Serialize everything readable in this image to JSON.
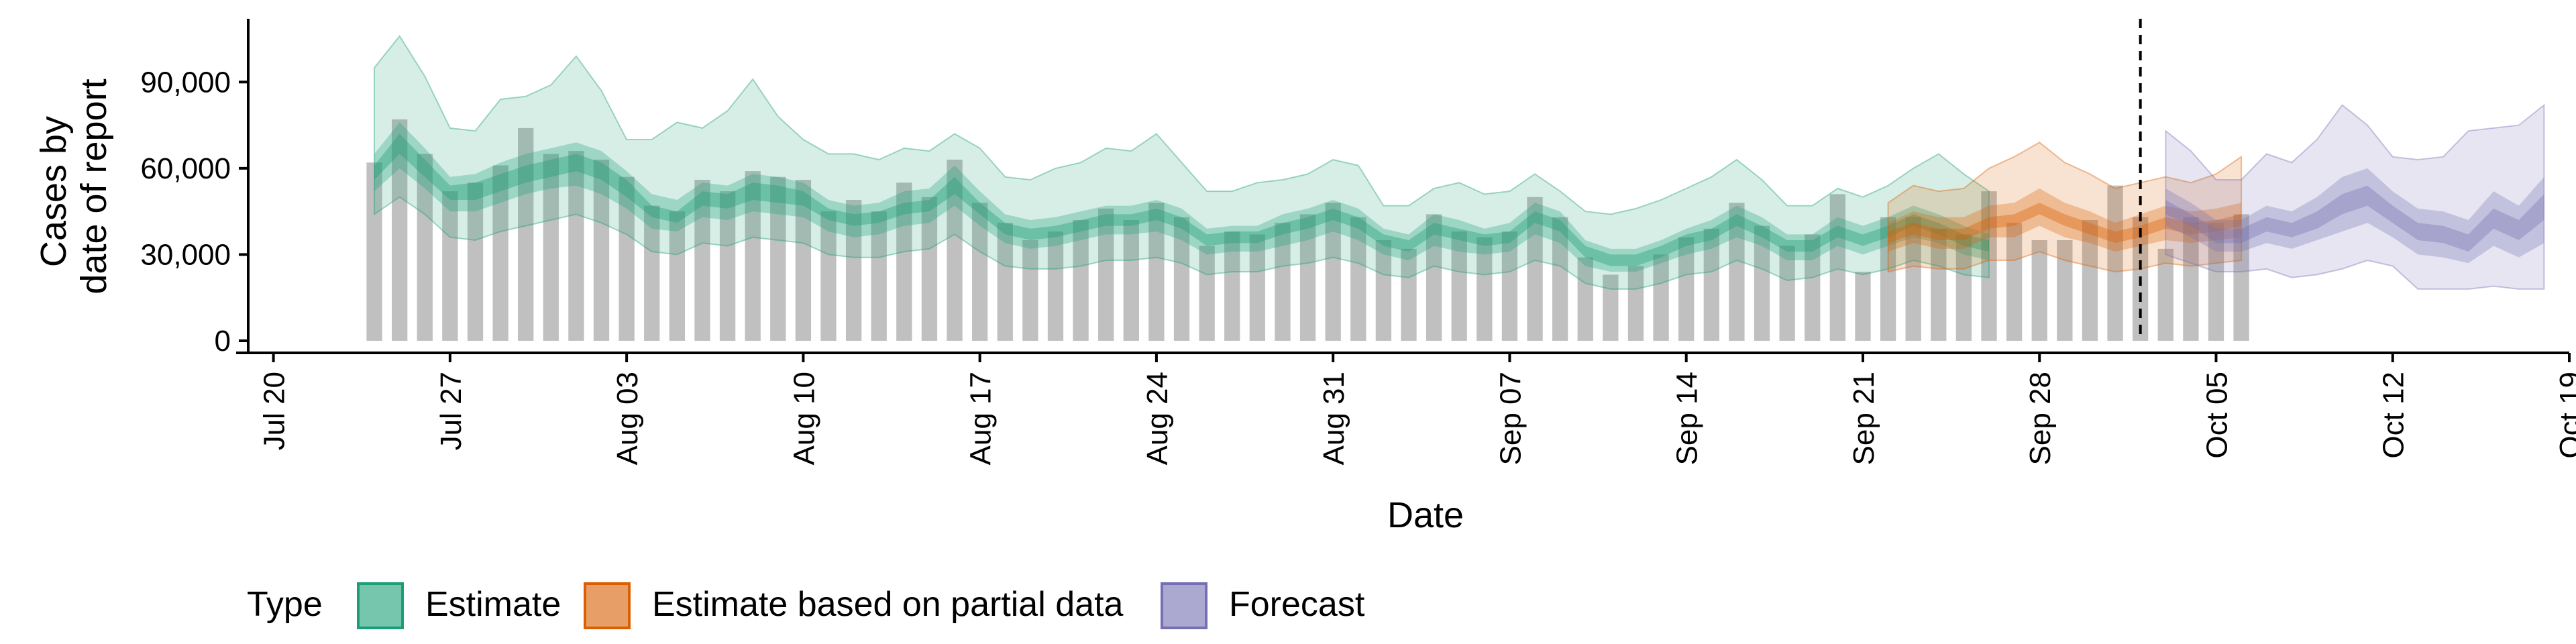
{
  "chart_data": {
    "type": "bar+ribbon",
    "xlabel": "Date",
    "ylabel_lines": [
      "Cases by",
      "date of report"
    ],
    "ylim": [
      0,
      112000
    ],
    "xlim": [
      "2020-07-19",
      "2020-10-19"
    ],
    "y_ticks": [
      {
        "value": 0,
        "label": "0"
      },
      {
        "value": 30000,
        "label": "30,000"
      },
      {
        "value": 60000,
        "label": "60,000"
      },
      {
        "value": 90000,
        "label": "90,000"
      }
    ],
    "x_ticks": [
      {
        "date": "2020-07-20",
        "label": "Jul 20"
      },
      {
        "date": "2020-07-27",
        "label": "Jul 27"
      },
      {
        "date": "2020-08-03",
        "label": "Aug 03"
      },
      {
        "date": "2020-08-10",
        "label": "Aug 10"
      },
      {
        "date": "2020-08-17",
        "label": "Aug 17"
      },
      {
        "date": "2020-08-24",
        "label": "Aug 24"
      },
      {
        "date": "2020-08-31",
        "label": "Aug 31"
      },
      {
        "date": "2020-09-07",
        "label": "Sep 07"
      },
      {
        "date": "2020-09-14",
        "label": "Sep 14"
      },
      {
        "date": "2020-09-21",
        "label": "Sep 21"
      },
      {
        "date": "2020-09-28",
        "label": "Sep 28"
      },
      {
        "date": "2020-10-05",
        "label": "Oct 05"
      },
      {
        "date": "2020-10-12",
        "label": "Oct 12"
      },
      {
        "date": "2020-10-19",
        "label": "Oct 19"
      }
    ],
    "bars": {
      "start_date": "2020-07-24",
      "values": [
        62000,
        77000,
        65000,
        52000,
        55000,
        61000,
        74000,
        65000,
        66000,
        63000,
        57000,
        47000,
        45000,
        56000,
        52000,
        59000,
        57000,
        56000,
        45000,
        49000,
        45000,
        55000,
        50000,
        63000,
        48000,
        41000,
        35000,
        38000,
        42000,
        46000,
        42000,
        48000,
        43000,
        33000,
        38000,
        37000,
        41000,
        44000,
        48000,
        43000,
        35000,
        32000,
        44000,
        38000,
        36000,
        38000,
        50000,
        43000,
        29000,
        23000,
        26000,
        30000,
        36000,
        39000,
        48000,
        40000,
        33000,
        37000,
        51000,
        24000,
        43000,
        43000,
        39000,
        37000,
        52000,
        41000,
        35000,
        35000,
        42000,
        54000,
        43000,
        32000,
        43000,
        41000,
        44000
      ]
    },
    "vline_date": "2020-10-02",
    "series": [
      {
        "name": "Estimate",
        "color": "#1b9e77",
        "start_date": "2020-07-24",
        "median": [
          58000,
          68000,
          60000,
          51000,
          52000,
          55000,
          58000,
          60000,
          62000,
          59000,
          53000,
          45000,
          43000,
          49000,
          48000,
          52000,
          51000,
          49000,
          44000,
          42000,
          43000,
          46000,
          47000,
          54000,
          46000,
          39000,
          37000,
          38000,
          40000,
          42000,
          42000,
          44000,
          41000,
          35000,
          36000,
          36000,
          39000,
          41000,
          44000,
          41000,
          35000,
          33000,
          39000,
          37000,
          35000,
          36000,
          43000,
          40000,
          31000,
          28000,
          28000,
          31000,
          35000,
          37000,
          42000,
          38000,
          33000,
          33000,
          38000,
          35000,
          38000,
          42000,
          39000,
          35000,
          33000
        ],
        "lower90": [
          44000,
          50000,
          44000,
          36000,
          35000,
          38000,
          40000,
          42000,
          44000,
          41000,
          37000,
          31000,
          30000,
          34000,
          33000,
          36000,
          35000,
          34000,
          30000,
          29000,
          29000,
          31000,
          32000,
          37000,
          31000,
          26000,
          25000,
          25000,
          26000,
          28000,
          28000,
          29000,
          27000,
          23000,
          24000,
          24000,
          26000,
          27000,
          29000,
          27000,
          23000,
          22000,
          26000,
          24000,
          23000,
          24000,
          28000,
          26000,
          20000,
          18000,
          18000,
          20000,
          23000,
          24000,
          28000,
          25000,
          21000,
          22000,
          25000,
          23000,
          25000,
          28000,
          26000,
          23000,
          22000
        ],
        "upper90": [
          95000,
          106000,
          92000,
          74000,
          73000,
          84000,
          85000,
          89000,
          99000,
          87000,
          70000,
          70000,
          76000,
          74000,
          80000,
          91000,
          78000,
          70000,
          65000,
          65000,
          63000,
          67000,
          66000,
          72000,
          67000,
          57000,
          56000,
          60000,
          62000,
          67000,
          66000,
          72000,
          62000,
          52000,
          52000,
          55000,
          56000,
          58000,
          63000,
          61000,
          47000,
          47000,
          53000,
          55000,
          51000,
          52000,
          58000,
          52000,
          45000,
          44000,
          46000,
          49000,
          53000,
          57000,
          63000,
          56000,
          47000,
          47000,
          53000,
          50000,
          54000,
          60000,
          65000,
          58000,
          52000
        ],
        "lower50": [
          52000,
          60000,
          53000,
          45000,
          45000,
          48000,
          51000,
          53000,
          54000,
          51000,
          46000,
          39000,
          38000,
          43000,
          42000,
          45000,
          44000,
          43000,
          38000,
          36000,
          37000,
          40000,
          41000,
          47000,
          40000,
          34000,
          32000,
          33000,
          35000,
          37000,
          37000,
          38000,
          35000,
          30000,
          31000,
          31000,
          33000,
          35000,
          38000,
          35000,
          30000,
          28000,
          33000,
          31000,
          30000,
          31000,
          37000,
          34000,
          26000,
          24000,
          24000,
          27000,
          30000,
          32000,
          36000,
          33000,
          28000,
          28000,
          33000,
          30000,
          33000,
          36000,
          34000,
          30000,
          28000
        ],
        "upper50": [
          65000,
          76000,
          67000,
          57000,
          58000,
          62000,
          65000,
          67000,
          69000,
          66000,
          59000,
          51000,
          49000,
          55000,
          54000,
          58000,
          57000,
          55000,
          49000,
          47000,
          48000,
          52000,
          53000,
          61000,
          52000,
          44000,
          42000,
          43000,
          45000,
          47000,
          47000,
          49000,
          46000,
          39000,
          40000,
          40000,
          44000,
          46000,
          49000,
          46000,
          39000,
          37000,
          44000,
          42000,
          39000,
          41000,
          48000,
          45000,
          35000,
          32000,
          32000,
          35000,
          39000,
          42000,
          47000,
          43000,
          37000,
          37000,
          43000,
          40000,
          43000,
          47000,
          44000,
          40000,
          37000
        ],
        "lower20": [
          56000,
          65000,
          57000,
          49000,
          49000,
          52000,
          55000,
          57000,
          59000,
          56000,
          50000,
          43000,
          41000,
          47000,
          46000,
          49000,
          48000,
          47000,
          42000,
          40000,
          41000,
          44000,
          45000,
          51000,
          44000,
          37000,
          35000,
          36000,
          38000,
          40000,
          40000,
          42000,
          39000,
          33000,
          34000,
          34000,
          37000,
          39000,
          42000,
          39000,
          33000,
          31000,
          37000,
          35000,
          33000,
          34000,
          41000,
          38000,
          29000,
          26000,
          26000,
          29000,
          33000,
          35000,
          40000,
          36000,
          31000,
          31000,
          36000,
          33000,
          36000,
          40000,
          37000,
          33000,
          31000
        ],
        "upper20": [
          61000,
          72000,
          63000,
          54000,
          55000,
          58000,
          61000,
          63000,
          65000,
          62000,
          56000,
          47000,
          45000,
          52000,
          51000,
          55000,
          54000,
          52000,
          46000,
          44000,
          45000,
          48000,
          49000,
          57000,
          48000,
          41000,
          39000,
          40000,
          42000,
          44000,
          44000,
          46000,
          43000,
          37000,
          38000,
          38000,
          41000,
          43000,
          46000,
          43000,
          37000,
          35000,
          41000,
          39000,
          37000,
          38000,
          45000,
          42000,
          33000,
          30000,
          30000,
          33000,
          37000,
          39000,
          44000,
          40000,
          35000,
          35000,
          40000,
          37000,
          40000,
          44000,
          41000,
          37000,
          35000
        ]
      },
      {
        "name": "Estimate based on partial data",
        "color": "#d95f02",
        "start_date": "2020-09-22",
        "median": [
          36000,
          39000,
          37000,
          37000,
          41000,
          42000,
          46000,
          42000,
          39000,
          36000,
          38000,
          41000,
          39000,
          40000,
          42000
        ],
        "lower90": [
          24000,
          26000,
          25000,
          25000,
          28000,
          28000,
          31000,
          28000,
          26000,
          24000,
          25000,
          27000,
          26000,
          27000,
          28000
        ],
        "upper90": [
          48000,
          54000,
          52000,
          53000,
          60000,
          64000,
          69000,
          62000,
          58000,
          53000,
          55000,
          57000,
          55000,
          58000,
          64000
        ],
        "lower50": [
          31000,
          34000,
          32000,
          32000,
          36000,
          36000,
          40000,
          36000,
          34000,
          31000,
          33000,
          35000,
          34000,
          35000,
          36000
        ],
        "upper50": [
          41000,
          45000,
          43000,
          43000,
          47000,
          48000,
          53000,
          48000,
          45000,
          41000,
          44000,
          47000,
          45000,
          46000,
          48000
        ],
        "lower20": [
          34000,
          37000,
          35000,
          35000,
          39000,
          40000,
          44000,
          40000,
          37000,
          34000,
          36000,
          39000,
          37000,
          38000,
          40000
        ],
        "upper20": [
          38000,
          41000,
          39000,
          39000,
          43000,
          44000,
          48000,
          44000,
          41000,
          38000,
          40000,
          43000,
          41000,
          42000,
          44000
        ]
      },
      {
        "name": "Forecast",
        "color": "#7570b3",
        "start_date": "2020-10-03",
        "median": [
          46000,
          42000,
          36000,
          36000,
          40000,
          38000,
          42000,
          47000,
          50000,
          44000,
          38000,
          37000,
          34000,
          42000,
          38000,
          46000
        ],
        "lower90": [
          30000,
          27000,
          24000,
          24000,
          25000,
          22000,
          23000,
          25000,
          28000,
          26000,
          18000,
          18000,
          18000,
          19000,
          18000,
          18000
        ],
        "upper90": [
          73000,
          66000,
          56000,
          56000,
          65000,
          62000,
          70000,
          82000,
          75000,
          64000,
          63000,
          64000,
          73000,
          74000,
          75000,
          82000
        ],
        "lower50": [
          40000,
          36000,
          31000,
          31000,
          34000,
          32000,
          35000,
          38000,
          41000,
          36000,
          30000,
          29000,
          27000,
          33000,
          29000,
          34000
        ],
        "upper50": [
          53000,
          48000,
          42000,
          42000,
          47000,
          45000,
          50000,
          57000,
          60000,
          52000,
          46000,
          45000,
          42000,
          52000,
          47000,
          57000
        ],
        "lower20": [
          44000,
          40000,
          34000,
          34000,
          38000,
          36000,
          39000,
          44000,
          47000,
          41000,
          35000,
          34000,
          31000,
          39000,
          35000,
          42000
        ],
        "upper20": [
          49000,
          44000,
          39000,
          39000,
          43000,
          41000,
          45000,
          51000,
          54000,
          47000,
          41000,
          40000,
          37000,
          46000,
          42000,
          51000
        ]
      }
    ],
    "legend": {
      "title": "Type",
      "placement": "bottom-left",
      "entries": [
        {
          "label": "Estimate",
          "color": "#1b9e77"
        },
        {
          "label": "Estimate based on partial data",
          "color": "#d95f02"
        },
        {
          "label": "Forecast",
          "color": "#7570b3"
        }
      ]
    }
  }
}
